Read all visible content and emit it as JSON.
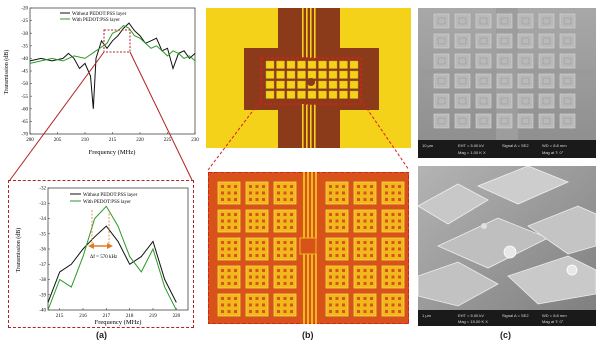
{
  "panel_a": {
    "top_chart": {
      "legend": [
        "Without PEDOT:PSS layer",
        "With PEDOT:PSS layer"
      ],
      "ylabel": "Transmission (dB)",
      "xlabel": "Frequency (MHz)",
      "yticks": [
        "-20",
        "-25",
        "-30",
        "-35",
        "-40",
        "-45",
        "-50",
        "-55",
        "-60",
        "-65",
        "-70"
      ],
      "xticks": [
        "200",
        "205",
        "210",
        "215",
        "220",
        "225",
        "230"
      ]
    },
    "bottom_chart": {
      "legend": [
        "Without PEDOT:PSS layer",
        "With PEDOT:PSS layer"
      ],
      "ylabel": "Transmission (dB)",
      "xlabel": "Frequency (MHz)",
      "yticks": [
        "-32",
        "-33",
        "-34",
        "-35",
        "-36",
        "-37",
        "-38",
        "-39",
        "-40"
      ],
      "xticks": [
        "215",
        "216",
        "217",
        "218",
        "219",
        "220"
      ],
      "annotation": "Δf = 570 kHz"
    },
    "caption": "(a)"
  },
  "panel_b": {
    "caption": "(b)"
  },
  "panel_c": {
    "top_info": [
      "10 µm",
      "EHT = 5.00 kV",
      "Signal A = SE2",
      "WD = 8.8 mm",
      "Mag = 1.00 K X",
      "Mag at T: 0°"
    ],
    "bottom_info": [
      "1 µm",
      "EHT = 5.00 kV",
      "Signal A = SE2",
      "WD = 8.8 mm",
      "Mag = 15.00 K X",
      "Mag at T: 0°"
    ],
    "caption": "(c)"
  },
  "colors": {
    "series_without": "#111111",
    "series_with": "#2a9a2a",
    "highlight_dashed": "#b22222",
    "arrow_orange": "#e07b20",
    "chip_yellow": "#f5d21a",
    "chip_brown": "#8b3a1a"
  },
  "chart_data": [
    {
      "type": "line",
      "xlabel": "Frequency (MHz)",
      "ylabel": "Transmission (dB)",
      "xlim": [
        200,
        230
      ],
      "ylim": [
        -70,
        -20
      ],
      "series": [
        {
          "name": "Without PEDOT:PSS layer",
          "x": [
            200,
            202,
            204,
            206,
            207,
            208,
            209,
            210,
            211,
            211.5,
            212,
            213,
            214,
            215,
            216,
            217,
            218,
            219,
            220,
            221,
            222,
            223,
            224,
            225,
            226,
            227,
            228,
            229,
            230
          ],
          "y": [
            -41,
            -40,
            -41,
            -40,
            -38,
            -40,
            -44,
            -42,
            -47,
            -60,
            -40,
            -33,
            -36,
            -33,
            -31,
            -28,
            -26,
            -29,
            -31,
            -34,
            -33,
            -32,
            -37,
            -36,
            -44,
            -38,
            -37,
            -40,
            -38
          ]
        },
        {
          "name": "With PEDOT:PSS layer",
          "x": [
            200,
            202,
            204,
            206,
            208,
            210,
            212,
            214,
            215,
            216,
            217,
            218,
            219,
            220,
            221,
            222,
            223,
            224,
            225,
            226,
            227,
            228,
            229,
            230
          ],
          "y": [
            -42,
            -41,
            -40,
            -41,
            -39,
            -40,
            -37,
            -34,
            -30,
            -29,
            -27,
            -28,
            -31,
            -32,
            -34,
            -36,
            -35,
            -37,
            -39,
            -37,
            -38,
            -40,
            -39,
            -41
          ]
        }
      ]
    },
    {
      "type": "line",
      "xlabel": "Frequency (MHz)",
      "ylabel": "Transmission (dB)",
      "xlim": [
        214.5,
        220.5
      ],
      "ylim": [
        -40,
        -32
      ],
      "series": [
        {
          "name": "Without PEDOT:PSS layer",
          "x": [
            214.5,
            215,
            215.5,
            216,
            216.5,
            217,
            217.5,
            218,
            218.5,
            219,
            219.5,
            220
          ],
          "y": [
            -39.5,
            -37.5,
            -37,
            -36,
            -35.2,
            -34.5,
            -35.5,
            -37,
            -36.5,
            -35.5,
            -38,
            -39.5
          ]
        },
        {
          "name": "With PEDOT:PSS layer",
          "x": [
            214.5,
            215,
            215.5,
            216,
            216.5,
            217,
            217.5,
            218,
            218.5,
            219,
            219.5,
            220
          ],
          "y": [
            -40,
            -38,
            -38.5,
            -36.5,
            -34,
            -33.2,
            -34.5,
            -36.5,
            -37.5,
            -36,
            -38.5,
            -40
          ]
        }
      ]
    }
  ]
}
